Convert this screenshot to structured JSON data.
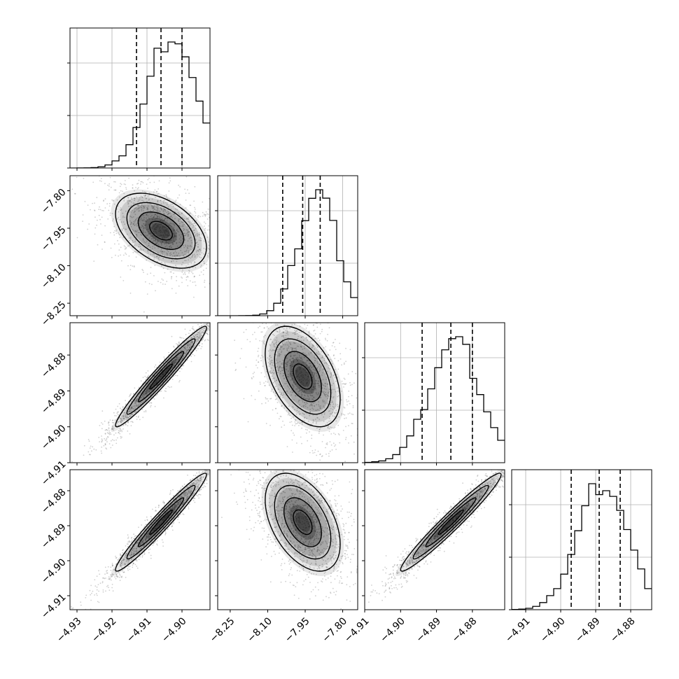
{
  "chart_data": {
    "type": "corner",
    "params": [
      {
        "index": 0,
        "hist_quantiles": [
          -4.913,
          -4.906,
          -4.9
        ],
        "range": [
          -4.932,
          -4.892
        ],
        "ticks": [
          -4.93,
          -4.92,
          -4.91,
          -4.9
        ],
        "tick_labels": [
          "−4.93",
          "−4.92",
          "−4.91",
          "−4.90"
        ],
        "peak": -4.903
      },
      {
        "index": 1,
        "hist_quantiles": [
          -8.04,
          -7.96,
          -7.89
        ],
        "range": [
          -8.3,
          -7.74
        ],
        "ticks": [
          -8.25,
          -8.1,
          -7.95,
          -7.8
        ],
        "tick_labels": [
          "−8.25",
          "−8.10",
          "−7.95",
          "−7.80"
        ],
        "peak": -7.9
      },
      {
        "index": 2,
        "hist_quantiles": [
          -4.894,
          -4.886,
          -4.88
        ],
        "range": [
          -4.91,
          -4.871
        ],
        "ticks": [
          -4.91,
          -4.9,
          -4.89,
          -4.88
        ],
        "tick_labels": [
          "−4.91",
          "−4.90",
          "−4.89",
          "−4.88"
        ],
        "peak": -4.885
      },
      {
        "index": 3,
        "hist_quantiles": [
          -4.897,
          -4.889,
          -4.883
        ],
        "range": [
          -4.914,
          -4.874
        ],
        "ticks": [
          -4.91,
          -4.9,
          -4.89,
          -4.88
        ],
        "tick_labels": [
          "−4.91",
          "−4.90",
          "−4.89",
          "−4.88"
        ],
        "peak": -4.888
      }
    ],
    "correlations": {
      "1-0": -0.45,
      "2-0": 0.97,
      "2-1": -0.45,
      "3-0": 0.97,
      "3-1": -0.45,
      "3-2": 0.97
    },
    "levels": [
      0.5,
      1.0,
      1.5,
      2.0
    ],
    "grid": true,
    "line_color": "#000000",
    "density_color": "#000000"
  }
}
